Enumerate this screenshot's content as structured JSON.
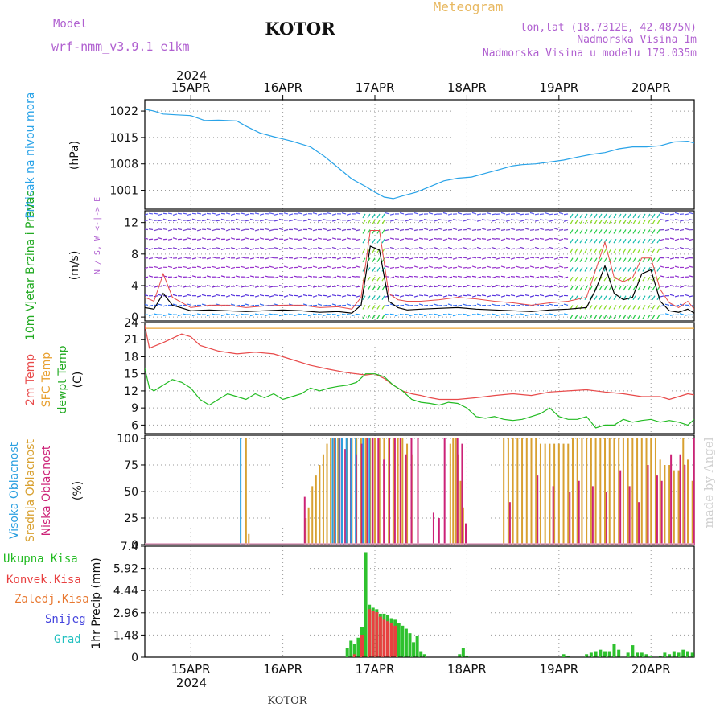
{
  "header": {
    "model_label": "Model",
    "model_name": "wrf-nmm_v3.9.1  e1km",
    "station": "KOTOR",
    "product": "Meteogram",
    "lonlat": "lon,lat (18.7312E, 42.4875N)",
    "elevation": "Nadmorska Visina 1m",
    "model_elevation": "Nadmorska Visina u modelu 179.035m",
    "top_year": "2024",
    "bottom_year": "2024",
    "footer_station": "KOTOR",
    "credit": "made by Angel"
  },
  "colors": {
    "pressure": "#29a3e8",
    "temp2m": "#e84a4a",
    "sfc": "#e8a030",
    "dewpt": "#22bb22",
    "high_cloud": "#2a9fe0",
    "mid_cloud": "#d8a030",
    "low_cloud": "#cc2277",
    "precip": "#2ec12e",
    "conv": "#e84040",
    "wind_speed": "#000000",
    "gust": "#e84a4a"
  },
  "time_axis": {
    "start_day": 14.5,
    "end_day": 20.47,
    "tick_days": [
      15,
      16,
      17,
      18,
      19,
      20
    ],
    "tick_labels": [
      "15APR",
      "16APR",
      "17APR",
      "18APR",
      "19APR",
      "20APR"
    ]
  },
  "chart_data": [
    {
      "type": "line",
      "ylabel": "Pritisak na nivou mora",
      "unit": "(hPa)",
      "ylim": [
        996,
        1025
      ],
      "yticks": [
        1001,
        1008,
        1015,
        1022
      ],
      "grid": true,
      "series": [
        {
          "name": "Pritisak na nivou mora",
          "x": [
            14.5,
            14.6,
            14.7,
            14.85,
            15.0,
            15.15,
            15.3,
            15.5,
            15.6,
            15.75,
            15.9,
            16.1,
            16.3,
            16.45,
            16.6,
            16.75,
            16.9,
            17.0,
            17.1,
            17.2,
            17.3,
            17.45,
            17.6,
            17.75,
            17.9,
            18.05,
            18.2,
            18.35,
            18.5,
            18.6,
            18.75,
            18.9,
            19.05,
            19.2,
            19.35,
            19.5,
            19.65,
            19.8,
            19.95,
            20.1,
            20.25,
            20.4,
            20.47
          ],
          "values": [
            1022.5,
            1022.0,
            1021.2,
            1021.0,
            1020.8,
            1019.5,
            1019.6,
            1019.4,
            1018.0,
            1016.2,
            1015.2,
            1014.0,
            1012.5,
            1010.0,
            1007.0,
            1004.0,
            1002.0,
            1000.5,
            999.2,
            998.8,
            999.5,
            1000.5,
            1002.0,
            1003.5,
            1004.2,
            1004.5,
            1005.5,
            1006.5,
            1007.5,
            1007.8,
            1008.0,
            1008.5,
            1009.0,
            1009.8,
            1010.5,
            1011.0,
            1012.0,
            1012.5,
            1012.5,
            1012.8,
            1013.8,
            1014.0,
            1013.5
          ]
        }
      ]
    },
    {
      "type": "line",
      "ylabel": "10m Vjetar Brzina i Pravac",
      "unit": "(m/s)",
      "direction_legend": "N / S, W <-|-> E",
      "ylim": [
        -0.5,
        13.5
      ],
      "yticks": [
        0,
        4,
        8,
        12
      ],
      "grid": true,
      "series": [
        {
          "name": "wind",
          "x": [
            14.5,
            14.6,
            14.7,
            14.8,
            15.0,
            15.2,
            15.4,
            15.6,
            15.8,
            16.0,
            16.2,
            16.4,
            16.6,
            16.75,
            16.85,
            16.95,
            17.05,
            17.15,
            17.25,
            17.35,
            17.5,
            17.7,
            17.9,
            18.1,
            18.3,
            18.5,
            18.7,
            18.9,
            19.1,
            19.3,
            19.4,
            19.5,
            19.6,
            19.7,
            19.8,
            19.9,
            20.0,
            20.1,
            20.2,
            20.3,
            20.4,
            20.47
          ],
          "values": [
            1.2,
            1.0,
            3.0,
            1.5,
            0.8,
            0.9,
            0.8,
            0.7,
            0.8,
            0.9,
            0.8,
            0.6,
            0.7,
            0.5,
            1.5,
            9.0,
            8.5,
            2.0,
            1.2,
            0.9,
            1.0,
            1.1,
            1.2,
            1.0,
            0.9,
            0.8,
            0.7,
            0.9,
            1.0,
            1.2,
            3.5,
            6.5,
            3.0,
            2.2,
            2.5,
            5.5,
            6.0,
            2.0,
            0.8,
            0.6,
            1.0,
            0.5
          ]
        },
        {
          "name": "gust",
          "x": [
            14.5,
            14.6,
            14.7,
            14.8,
            15.0,
            15.2,
            15.4,
            15.6,
            15.8,
            16.0,
            16.2,
            16.4,
            16.6,
            16.75,
            16.85,
            16.95,
            17.05,
            17.15,
            17.25,
            17.35,
            17.5,
            17.7,
            17.9,
            18.1,
            18.3,
            18.5,
            18.7,
            18.9,
            19.1,
            19.3,
            19.4,
            19.5,
            19.6,
            19.7,
            19.8,
            19.9,
            20.0,
            20.1,
            20.2,
            20.3,
            20.4,
            20.47
          ],
          "values": [
            2.5,
            2.0,
            5.5,
            2.5,
            1.2,
            1.5,
            1.5,
            1.2,
            1.4,
            1.5,
            1.5,
            1.2,
            1.3,
            1.0,
            2.5,
            11.0,
            11.0,
            3.0,
            2.2,
            2.0,
            2.0,
            2.2,
            2.5,
            2.3,
            2.0,
            1.8,
            1.5,
            1.8,
            2.0,
            2.5,
            6.0,
            9.5,
            5.0,
            4.5,
            5.0,
            7.5,
            7.5,
            3.5,
            1.8,
            1.2,
            2.0,
            1.0
          ]
        }
      ]
    },
    {
      "type": "line",
      "ylabel_2m": "2m Temp",
      "ylabel_sfc": "SFC Temp",
      "ylabel_dew": "dewpt Temp",
      "unit": "(C)",
      "ylim": [
        4.5,
        24
      ],
      "yticks": [
        6,
        9,
        12,
        15,
        18,
        21,
        24
      ],
      "grid": true,
      "series": [
        {
          "name": "2m Temp",
          "x": [
            14.5,
            14.55,
            14.7,
            14.9,
            15.0,
            15.1,
            15.3,
            15.5,
            15.7,
            15.9,
            16.1,
            16.3,
            16.5,
            16.7,
            16.9,
            17.0,
            17.1,
            17.2,
            17.3,
            17.4,
            17.5,
            17.6,
            17.7,
            17.9,
            18.1,
            18.3,
            18.5,
            18.7,
            18.9,
            19.1,
            19.3,
            19.5,
            19.7,
            19.9,
            20.1,
            20.2,
            20.3,
            20.4,
            20.47
          ],
          "values": [
            23.5,
            19.5,
            20.5,
            22.0,
            21.5,
            20.0,
            19.0,
            18.5,
            18.8,
            18.5,
            17.5,
            16.5,
            15.8,
            15.2,
            14.8,
            15.0,
            14.2,
            13.0,
            12.0,
            11.5,
            11.2,
            10.8,
            10.5,
            10.5,
            10.8,
            11.2,
            11.5,
            11.2,
            11.8,
            12.0,
            12.2,
            11.8,
            11.5,
            11.0,
            11.0,
            10.5,
            11.0,
            11.5,
            11.3
          ]
        },
        {
          "name": "SFC Temp",
          "x": [
            14.5,
            20.47
          ],
          "values": [
            23.0,
            23.0
          ]
        },
        {
          "name": "dewpt Temp",
          "x": [
            14.5,
            14.55,
            14.6,
            14.7,
            14.8,
            14.9,
            15.0,
            15.1,
            15.2,
            15.3,
            15.4,
            15.5,
            15.6,
            15.7,
            15.8,
            15.9,
            16.0,
            16.1,
            16.2,
            16.3,
            16.4,
            16.5,
            16.6,
            16.7,
            16.8,
            16.9,
            17.0,
            17.1,
            17.2,
            17.3,
            17.4,
            17.5,
            17.6,
            17.7,
            17.8,
            17.9,
            18.0,
            18.1,
            18.2,
            18.3,
            18.4,
            18.5,
            18.6,
            18.7,
            18.8,
            18.9,
            19.0,
            19.1,
            19.2,
            19.3,
            19.4,
            19.5,
            19.6,
            19.7,
            19.8,
            19.9,
            20.0,
            20.1,
            20.2,
            20.3,
            20.4,
            20.47
          ],
          "values": [
            16.0,
            12.5,
            12.0,
            13.0,
            14.0,
            13.5,
            12.5,
            10.5,
            9.5,
            10.5,
            11.5,
            11.0,
            10.5,
            11.5,
            10.8,
            11.5,
            10.5,
            11.0,
            11.5,
            12.5,
            12.0,
            12.5,
            12.8,
            13.0,
            13.5,
            15.0,
            15.0,
            14.5,
            13.0,
            12.0,
            10.5,
            10.0,
            9.8,
            9.5,
            10.0,
            9.8,
            9.0,
            7.5,
            7.2,
            7.5,
            7.0,
            6.8,
            7.0,
            7.5,
            8.0,
            9.0,
            7.5,
            7.0,
            7.0,
            7.5,
            5.5,
            6.0,
            6.0,
            7.0,
            6.5,
            6.8,
            7.0,
            6.5,
            6.8,
            6.5,
            6.0,
            7.0
          ]
        }
      ]
    },
    {
      "type": "bar",
      "ylabel_high": "Visoka Oblacnost",
      "ylabel_mid": "Srednja Oblacnost",
      "ylabel_low": "Niska Oblacnost",
      "unit": "(%)",
      "ylim": [
        0,
        103
      ],
      "yticks": [
        0,
        25,
        50,
        75,
        100
      ],
      "grid": true,
      "series": [
        {
          "name": "Visoka Oblacnost",
          "x": [
            15.55,
            16.55,
            16.58,
            16.62,
            16.65,
            16.7,
            16.75,
            16.8,
            16.88,
            16.95
          ],
          "values": [
            100,
            100,
            100,
            100,
            100,
            100,
            100,
            100,
            100,
            100
          ]
        },
        {
          "name": "Srednja Oblacnost",
          "x": [
            15.6,
            15.63,
            16.25,
            16.28,
            16.32,
            16.36,
            16.4,
            16.44,
            16.48,
            16.52,
            16.56,
            16.6,
            16.65,
            16.7,
            16.75,
            16.8,
            16.85,
            16.9,
            16.95,
            17.0,
            17.05,
            17.1,
            17.15,
            17.2,
            17.25,
            17.3,
            17.35,
            17.4,
            17.82,
            17.85,
            17.88,
            17.9,
            17.93,
            17.96,
            18.4,
            18.45,
            18.5,
            18.55,
            18.6,
            18.65,
            18.7,
            18.75,
            18.8,
            18.85,
            18.9,
            18.95,
            19.0,
            19.05,
            19.1,
            19.15,
            19.2,
            19.25,
            19.3,
            19.35,
            19.4,
            19.45,
            19.5,
            19.55,
            19.6,
            19.65,
            19.7,
            19.75,
            19.8,
            19.85,
            19.9,
            19.95,
            20.0,
            20.05,
            20.1,
            20.15,
            20.2,
            20.25,
            20.3,
            20.35,
            20.4,
            20.45
          ],
          "values": [
            100,
            10,
            25,
            35,
            55,
            65,
            75,
            85,
            95,
            100,
            100,
            100,
            100,
            100,
            100,
            100,
            100,
            100,
            100,
            100,
            100,
            100,
            100,
            100,
            100,
            100,
            95,
            85,
            95,
            100,
            100,
            85,
            60,
            35,
            100,
            100,
            100,
            100,
            100,
            100,
            100,
            100,
            95,
            95,
            95,
            95,
            95,
            95,
            95,
            100,
            100,
            100,
            100,
            100,
            100,
            100,
            100,
            100,
            100,
            100,
            100,
            100,
            100,
            100,
            100,
            100,
            100,
            100,
            80,
            75,
            75,
            70,
            70,
            100,
            80,
            60
          ]
        },
        {
          "name": "Niska Oblacnost",
          "x": [
            16.22,
            16.55,
            16.6,
            16.66,
            16.72,
            16.78,
            16.84,
            16.9,
            16.96,
            17.02,
            17.08,
            17.14,
            17.2,
            17.26,
            17.32,
            17.38,
            17.45,
            17.62,
            17.68,
            17.74,
            17.88,
            17.93,
            17.97,
            18.45,
            18.75,
            18.92,
            19.1,
            19.2,
            19.35,
            19.5,
            19.65,
            19.75,
            19.85,
            19.95,
            20.05,
            20.1,
            20.2,
            20.3,
            20.35,
            20.45
          ],
          "values": [
            45,
            100,
            100,
            90,
            100,
            85,
            95,
            100,
            100,
            100,
            80,
            100,
            100,
            100,
            85,
            100,
            100,
            30,
            25,
            100,
            100,
            95,
            20,
            40,
            65,
            55,
            50,
            60,
            55,
            50,
            70,
            55,
            40,
            75,
            65,
            60,
            85,
            85,
            75,
            100
          ]
        }
      ]
    },
    {
      "type": "bar",
      "ylabel_total": "Ukupna Kisa",
      "ylabel_conv": "Konvek.Kisa",
      "ylabel_frz": "Zaledj.Kisa",
      "ylabel_snow": "Snijeg",
      "ylabel_hail": "Grad",
      "unit": "1hr Precip (mm)",
      "ylim": [
        0,
        7.4
      ],
      "yticks": [
        0,
        1.48,
        2.96,
        4.44,
        5.92,
        7.4
      ],
      "ytick_labels": [
        "0",
        "1.48",
        "2.96",
        "4.44",
        "5.92",
        "7.4"
      ],
      "grid": true,
      "series": [
        {
          "name": "Ukupna Kisa",
          "x": [
            16.7,
            16.74,
            16.78,
            16.82,
            16.86,
            16.9,
            16.94,
            16.98,
            17.02,
            17.06,
            17.1,
            17.14,
            17.18,
            17.22,
            17.26,
            17.3,
            17.34,
            17.38,
            17.42,
            17.46,
            17.5,
            17.54,
            17.92,
            17.96,
            18.0,
            19.05,
            19.1,
            19.3,
            19.35,
            19.4,
            19.45,
            19.5,
            19.55,
            19.6,
            19.65,
            19.75,
            19.8,
            19.85,
            19.9,
            19.95,
            20.0,
            20.1,
            20.15,
            20.2,
            20.25,
            20.3,
            20.35,
            20.4,
            20.45
          ],
          "values": [
            0.6,
            1.1,
            0.9,
            1.3,
            2.0,
            7.0,
            3.5,
            3.3,
            3.2,
            2.9,
            2.9,
            2.8,
            2.6,
            2.5,
            2.3,
            2.1,
            1.9,
            1.6,
            1.0,
            1.4,
            0.4,
            0.2,
            0.2,
            0.6,
            0.1,
            0.2,
            0.1,
            0.2,
            0.3,
            0.4,
            0.5,
            0.4,
            0.4,
            0.9,
            0.5,
            0.3,
            0.8,
            0.3,
            0.3,
            0.2,
            0.1,
            0.1,
            0.3,
            0.2,
            0.4,
            0.3,
            0.5,
            0.4,
            0.3
          ]
        },
        {
          "name": "Konvek.Kisa",
          "x": [
            16.78,
            16.86,
            16.94,
            16.98,
            17.02,
            17.06,
            17.1,
            17.14,
            17.18,
            17.22
          ],
          "values": [
            0.2,
            1.5,
            3.2,
            3.1,
            3.0,
            2.7,
            2.5,
            2.4,
            2.3,
            2.1
          ]
        }
      ]
    }
  ]
}
